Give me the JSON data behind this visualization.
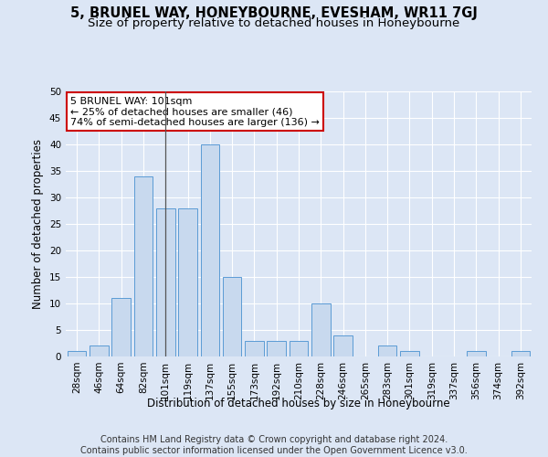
{
  "title": "5, BRUNEL WAY, HONEYBOURNE, EVESHAM, WR11 7GJ",
  "subtitle": "Size of property relative to detached houses in Honeybourne",
  "xlabel": "Distribution of detached houses by size in Honeybourne",
  "ylabel": "Number of detached properties",
  "footer_line1": "Contains HM Land Registry data © Crown copyright and database right 2024.",
  "footer_line2": "Contains public sector information licensed under the Open Government Licence v3.0.",
  "categories": [
    "28sqm",
    "46sqm",
    "64sqm",
    "82sqm",
    "101sqm",
    "119sqm",
    "137sqm",
    "155sqm",
    "173sqm",
    "192sqm",
    "210sqm",
    "228sqm",
    "246sqm",
    "265sqm",
    "283sqm",
    "301sqm",
    "319sqm",
    "337sqm",
    "356sqm",
    "374sqm",
    "392sqm"
  ],
  "values": [
    1,
    2,
    11,
    34,
    28,
    28,
    40,
    15,
    3,
    3,
    3,
    10,
    4,
    0,
    2,
    1,
    0,
    0,
    1,
    0,
    1
  ],
  "bar_color": "#c8d9ee",
  "bar_edge_color": "#5b9bd5",
  "highlight_index": 4,
  "highlight_line_color": "#555555",
  "annotation_text": "5 BRUNEL WAY: 101sqm\n← 25% of detached houses are smaller (46)\n74% of semi-detached houses are larger (136) →",
  "annotation_box_color": "#ffffff",
  "annotation_box_edge_color": "#cc0000",
  "ylim": [
    0,
    50
  ],
  "yticks": [
    0,
    5,
    10,
    15,
    20,
    25,
    30,
    35,
    40,
    45,
    50
  ],
  "background_color": "#dce6f5",
  "axes_background_color": "#dce6f5",
  "grid_color": "#ffffff",
  "title_fontsize": 10.5,
  "subtitle_fontsize": 9.5,
  "axis_label_fontsize": 8.5,
  "tick_fontsize": 7.5,
  "annotation_fontsize": 8,
  "footer_fontsize": 7
}
